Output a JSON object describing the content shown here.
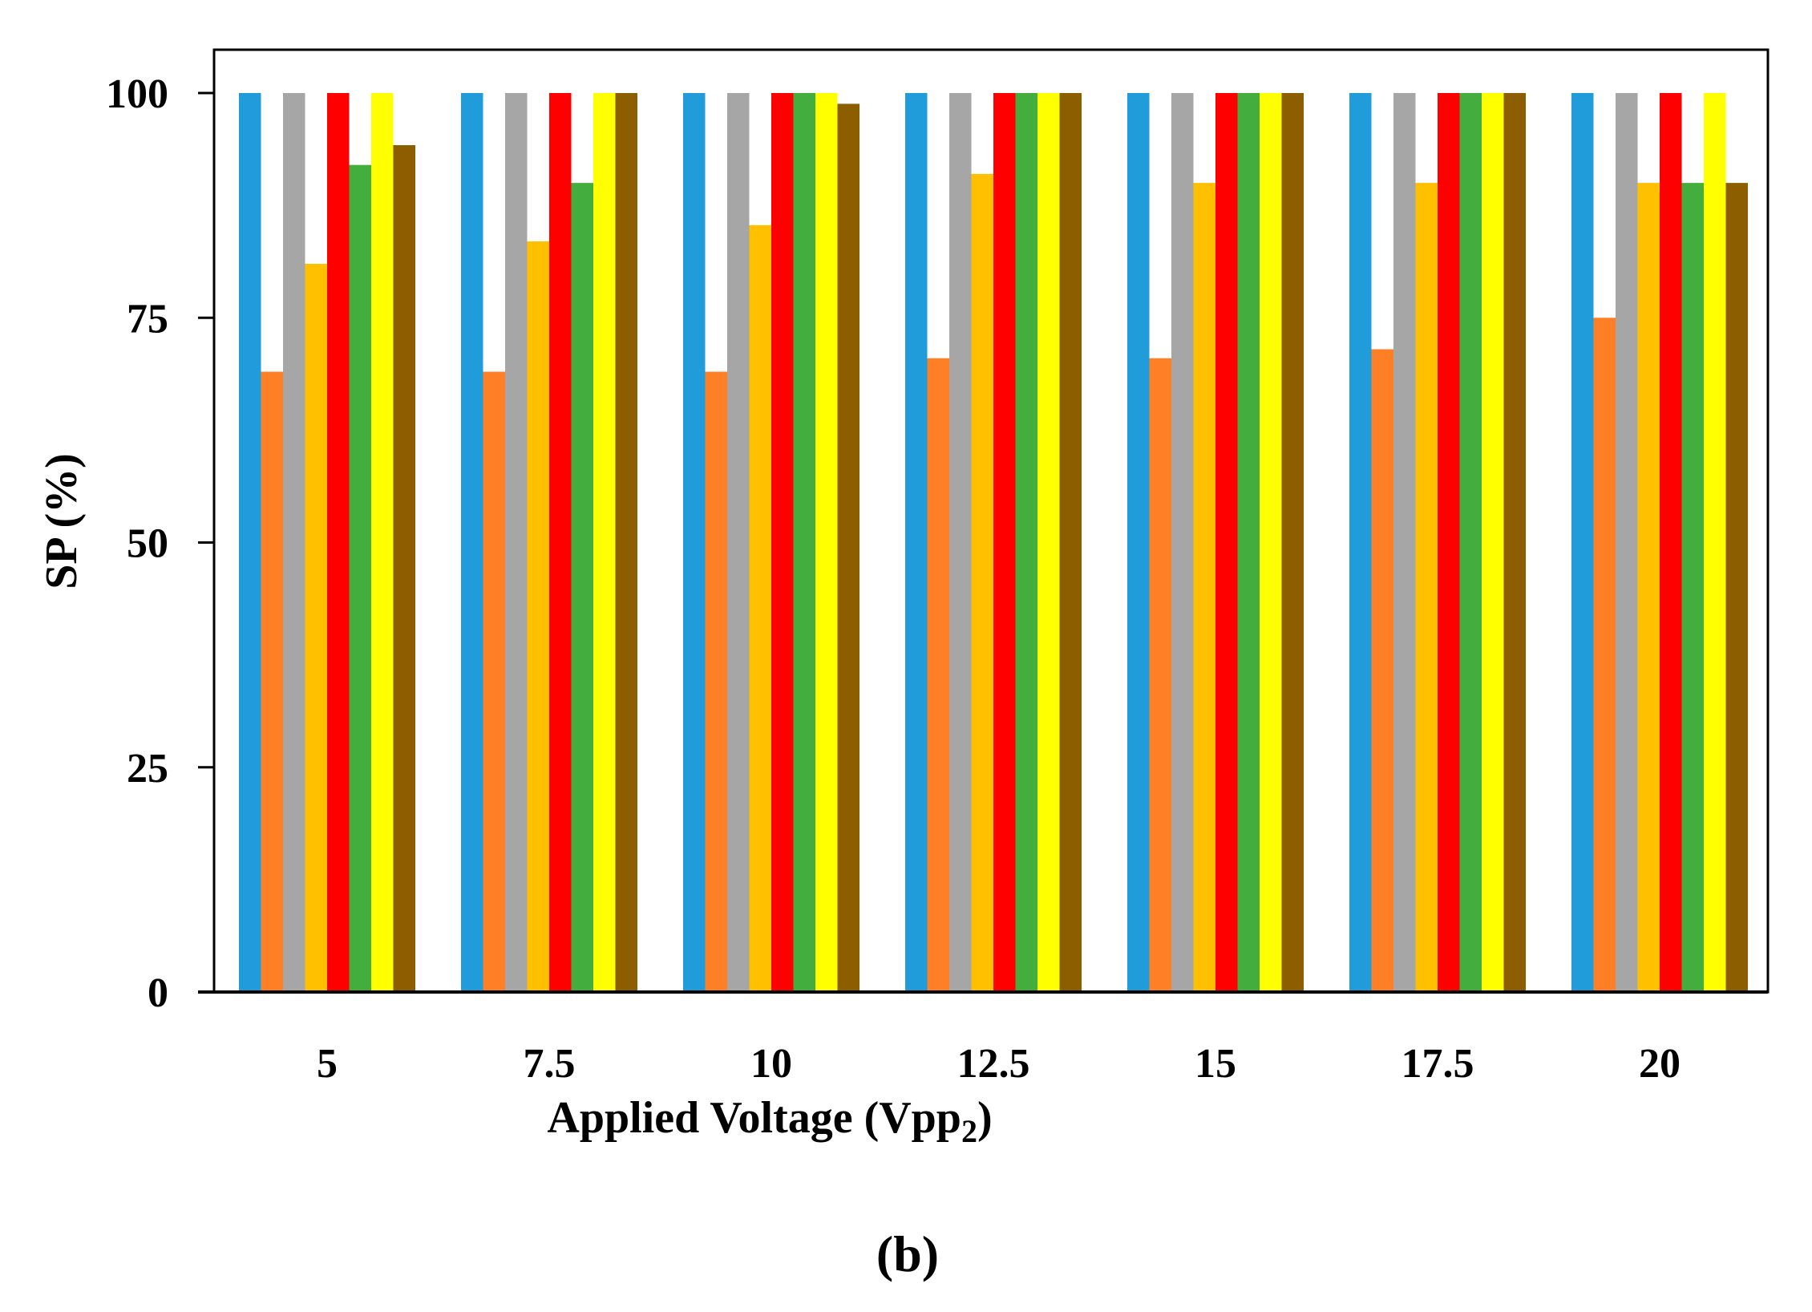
{
  "chart_data": {
    "type": "bar",
    "categories": [
      "5",
      "7.5",
      "10",
      "12.5",
      "15",
      "17.5",
      "20"
    ],
    "series": [
      {
        "values": [
          100,
          100,
          100,
          100,
          100,
          100,
          100
        ],
        "color": "#1f9cd9"
      },
      {
        "values": [
          69,
          69,
          69,
          70.5,
          70.5,
          71.5,
          75
        ],
        "color": "#ff7f27"
      },
      {
        "values": [
          100,
          100,
          100,
          100,
          100,
          100,
          100
        ],
        "color": "#a6a6a6"
      },
      {
        "values": [
          81,
          83.5,
          85.3,
          91,
          90,
          90,
          90
        ],
        "color": "#ffc000"
      },
      {
        "values": [
          100,
          100,
          100,
          100,
          100,
          100,
          100
        ],
        "color": "#ff0000"
      },
      {
        "values": [
          92,
          90,
          100,
          100,
          100,
          100,
          90
        ],
        "color": "#43ae3e"
      },
      {
        "values": [
          100,
          100,
          100,
          100,
          100,
          100,
          100
        ],
        "color": "#ffff00"
      },
      {
        "values": [
          94.2,
          100,
          98.8,
          100,
          100,
          100,
          90
        ],
        "color": "#8c5e00"
      }
    ],
    "xlabel": "Applied Voltage  (Vpp",
    "xlabel_subscript": "2",
    "xlabel_suffix": ")",
    "ylabel": "SP (%)",
    "ylim": [
      0,
      100
    ],
    "yticks": [
      "0",
      "25",
      "50",
      "75",
      "100"
    ],
    "panel_label": "(b)",
    "grid": false
  }
}
